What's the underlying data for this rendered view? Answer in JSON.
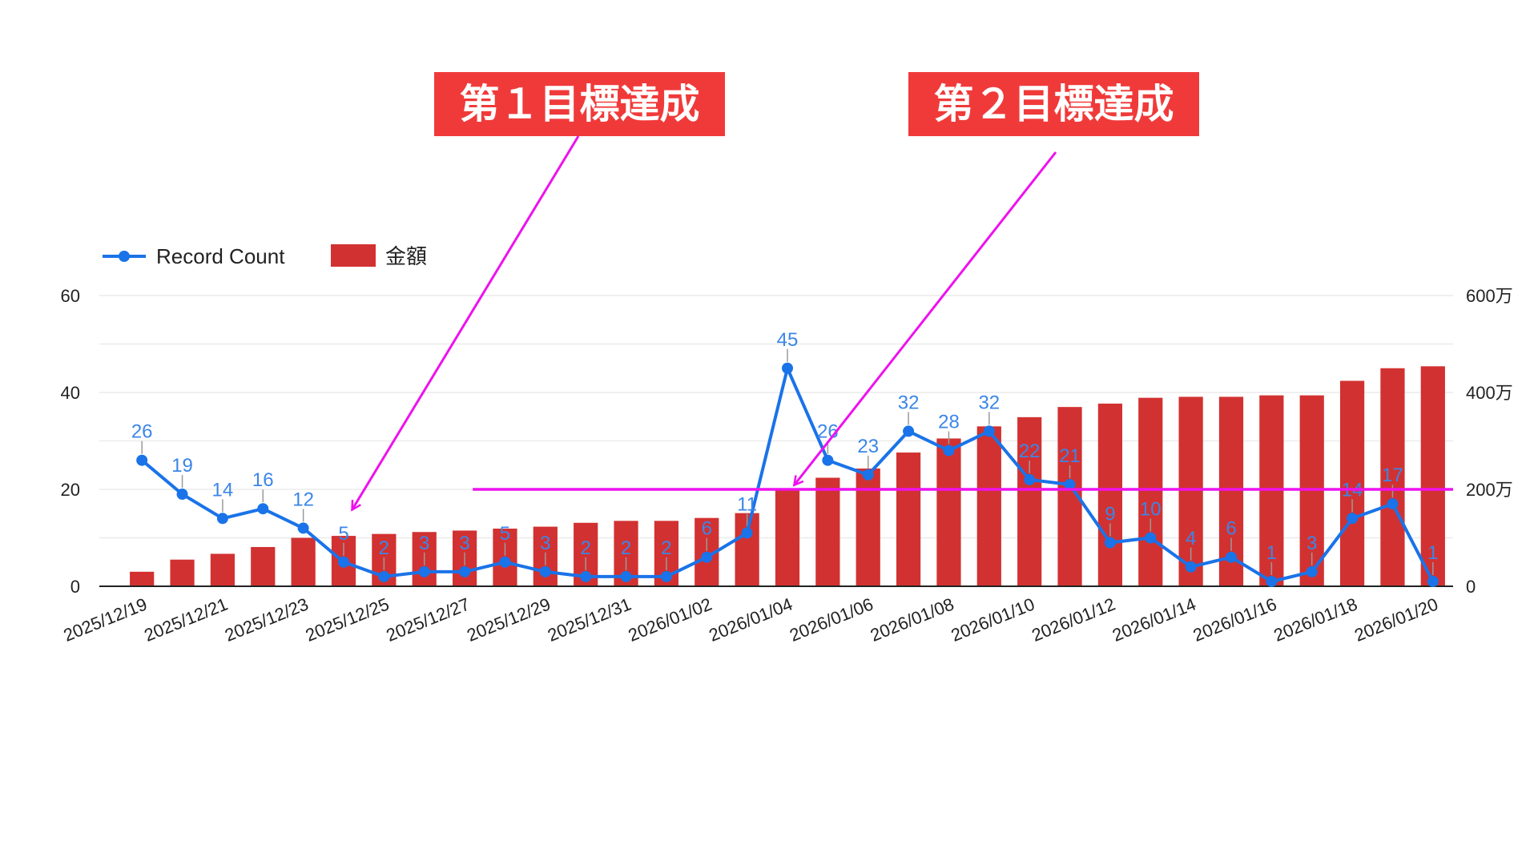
{
  "callouts": {
    "first": "第１目標達成",
    "second": "第２目標達成"
  },
  "colors": {
    "bar": "#d23131",
    "line": "#1a73e8",
    "label": "#3b86e8",
    "annotation": "#ee11ee",
    "callout_bg": "#f03a3a",
    "grid": "#ebebeb"
  },
  "chart_data": {
    "type": "bar",
    "legend": [
      "Record Count",
      "金額"
    ],
    "legend_position": "top-left",
    "categories": [
      "2025/12/19",
      "2025/12/20",
      "2025/12/21",
      "2025/12/22",
      "2025/12/23",
      "2025/12/24",
      "2025/12/25",
      "2025/12/26",
      "2025/12/27",
      "2025/12/28",
      "2025/12/29",
      "2025/12/30",
      "2025/12/31",
      "2026/01/01",
      "2026/01/02",
      "2026/01/03",
      "2026/01/04",
      "2026/01/05",
      "2026/01/06",
      "2026/01/07",
      "2026/01/08",
      "2026/01/09",
      "2026/01/10",
      "2026/01/11",
      "2026/01/12",
      "2026/01/13",
      "2026/01/14",
      "2026/01/15",
      "2026/01/16",
      "2026/01/17",
      "2026/01/18",
      "2026/01/19",
      "2026/01/20"
    ],
    "x_tick_labels": [
      "2025/12/19",
      "2025/12/21",
      "2025/12/23",
      "2025/12/25",
      "2025/12/27",
      "2025/12/29",
      "2025/12/31",
      "2026/01/02",
      "2026/01/04",
      "2026/01/06",
      "2026/01/08",
      "2026/01/10",
      "2026/01/12",
      "2026/01/14",
      "2026/01/16",
      "2026/01/18",
      "2026/01/20"
    ],
    "series": [
      {
        "name": "金額",
        "type": "bar",
        "axis": "right",
        "values": [
          30,
          55,
          67,
          81,
          100,
          104,
          108,
          112,
          115,
          119,
          123,
          131,
          135,
          135,
          141,
          151,
          198,
          224,
          243,
          276,
          305,
          330,
          349,
          370,
          377,
          389,
          391,
          391,
          394,
          394,
          424,
          450,
          454
        ]
      },
      {
        "name": "Record Count",
        "type": "line",
        "axis": "left",
        "values": [
          26,
          19,
          14,
          16,
          12,
          5,
          2,
          3,
          3,
          5,
          3,
          2,
          2,
          2,
          6,
          11,
          45,
          26,
          23,
          32,
          28,
          32,
          22,
          21,
          9,
          10,
          4,
          6,
          1,
          3,
          14,
          17,
          1
        ],
        "data_labels": [
          "26",
          "19",
          "14",
          "16",
          "12",
          "5",
          "2",
          "3",
          "3",
          "5",
          "3",
          "2",
          "2",
          "2",
          "6",
          "11",
          "45",
          "26",
          "23",
          "32",
          "28",
          "32",
          "22",
          "21",
          "9",
          "10",
          "4",
          "6",
          "1",
          "3",
          "14",
          "17",
          "1"
        ]
      }
    ],
    "y_left": {
      "ylim": [
        0,
        60
      ],
      "ticks": [
        "0",
        "20",
        "40",
        "60"
      ]
    },
    "y_right": {
      "ylim": [
        0,
        600
      ],
      "ticks": [
        "0",
        "200万",
        "400万",
        "600万"
      ]
    },
    "target_line": {
      "value": 200,
      "axis": "right",
      "from_category": "2025/12/28"
    },
    "grid": true
  }
}
